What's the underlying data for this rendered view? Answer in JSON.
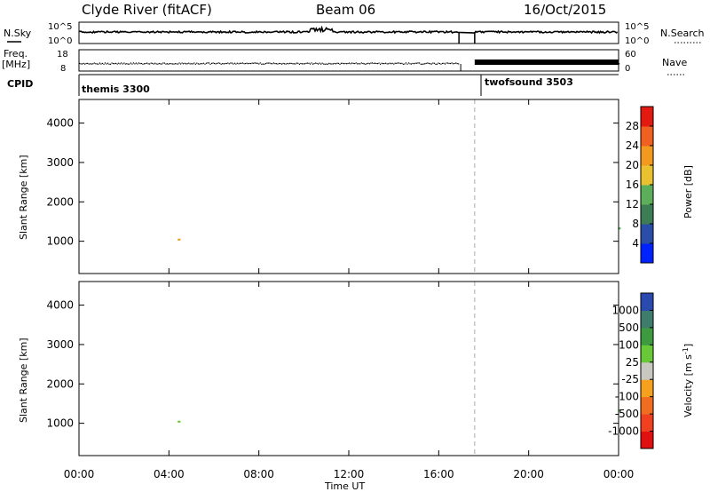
{
  "header": {
    "station": "Clyde River (fitACF)",
    "beam": "Beam 06",
    "date": "16/Oct/2015"
  },
  "strips": {
    "nsky_label": "N.Sky",
    "nsky_ticks": [
      "10^5",
      "10^0"
    ],
    "nsearch_label": "N.Search",
    "nsearch_ticks": [
      "10^5",
      "10^0"
    ],
    "freq_label": "Freq.",
    "freq_unit": "[MHz]",
    "freq_ticks": [
      "18",
      "8"
    ],
    "nave_label": "Nave",
    "nave_ticks": [
      "60",
      "0"
    ],
    "cpid_label": "CPID",
    "cpid_modes": [
      {
        "name": "themis 3300",
        "start_hour": 0
      },
      {
        "name": "twofsound 3503",
        "start_hour": 17.6
      }
    ]
  },
  "colors": {
    "power_scale": [
      "#0022ff",
      "#2a4ea8",
      "#3c7d55",
      "#5cae5a",
      "#e8c030",
      "#f29a20",
      "#f06020",
      "#e21a10"
    ],
    "velocity_scale": [
      "#e01010",
      "#f04020",
      "#f06c20",
      "#f6a020",
      "#c8c8c0",
      "#68c838",
      "#3e9a40",
      "#3e7c6c",
      "#2a4ab0"
    ]
  },
  "chart_data": [
    {
      "type": "heatmap",
      "title": "Power",
      "ylabel": "Slant Range [km]",
      "xlabel": "Time UT",
      "x_ticks": [
        "00:00",
        "04:00",
        "08:00",
        "12:00",
        "16:00",
        "20:00",
        "00:00"
      ],
      "y_ticks": [
        1000,
        2000,
        3000,
        4000
      ],
      "xlim_hours": [
        0,
        24
      ],
      "ylim_km": [
        180,
        4600
      ],
      "colorbar_label": "Power [dB]",
      "colorbar_ticks": [
        4,
        8,
        12,
        16,
        20,
        24,
        28
      ],
      "colorbar_range": [
        0,
        32
      ]
    },
    {
      "type": "heatmap",
      "title": "Velocity",
      "ylabel": "Slant Range [km]",
      "xlabel": "Time UT",
      "x_ticks": [
        "00:00",
        "04:00",
        "08:00",
        "12:00",
        "16:00",
        "20:00",
        "00:00"
      ],
      "y_ticks": [
        1000,
        2000,
        3000,
        4000
      ],
      "xlim_hours": [
        0,
        24
      ],
      "ylim_km": [
        180,
        4600
      ],
      "colorbar_label": "Velocity [m s",
      "colorbar_label_sup": "-1",
      "colorbar_ticks": [
        "1000",
        "500",
        "100",
        "25",
        "-25",
        "-100",
        "-500",
        "-1000"
      ]
    }
  ],
  "footer": {
    "xlabel": "Time UT"
  }
}
